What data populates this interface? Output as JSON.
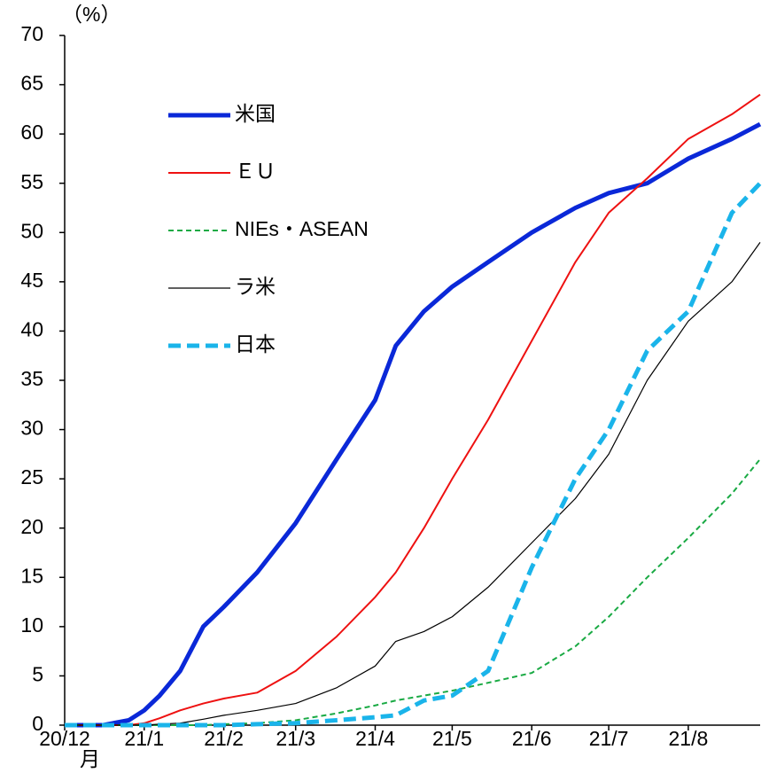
{
  "chart_data": {
    "type": "line",
    "ylabel": "（%）",
    "x_unit": "月",
    "x": [
      0,
      15,
      25,
      31,
      37,
      45,
      54,
      62,
      75,
      90,
      106,
      121,
      129,
      140,
      151,
      165,
      182,
      199,
      212,
      227,
      243,
      260,
      271
    ],
    "xlim": [
      0,
      271
    ],
    "xticks": [
      {
        "value": 0,
        "label": "20/12"
      },
      {
        "value": 31,
        "label": "21/1"
      },
      {
        "value": 62,
        "label": "21/2"
      },
      {
        "value": 90,
        "label": "21/3"
      },
      {
        "value": 121,
        "label": "21/4"
      },
      {
        "value": 151,
        "label": "21/5"
      },
      {
        "value": 182,
        "label": "21/6"
      },
      {
        "value": 212,
        "label": "21/7"
      },
      {
        "value": 243,
        "label": "21/8"
      }
    ],
    "ylim": [
      0,
      70
    ],
    "yticks": [
      0,
      5,
      10,
      15,
      20,
      25,
      30,
      35,
      40,
      45,
      50,
      55,
      60,
      65,
      70
    ],
    "legend": "upper left",
    "series": [
      {
        "name": "米国",
        "color": "#0a28d8",
        "width": 5,
        "dash": "none",
        "values": [
          0,
          0,
          0.5,
          1.5,
          3,
          5.5,
          10,
          12,
          15.5,
          20.5,
          27,
          33,
          38.5,
          42,
          44.5,
          47,
          50,
          52.5,
          54,
          55,
          57.5,
          59.5,
          61
        ]
      },
      {
        "name": "ＥＵ",
        "color": "#ee1111",
        "width": 2,
        "dash": "none",
        "values": [
          0,
          0,
          0,
          0.2,
          0.7,
          1.5,
          2.2,
          2.7,
          3.3,
          5.5,
          9,
          13,
          15.5,
          20,
          25,
          31,
          39,
          47,
          52,
          55.5,
          59.5,
          62,
          64
        ]
      },
      {
        "name": "NIEs・ASEAN",
        "color": "#1aaa44",
        "width": 2,
        "dash": "6 4",
        "values": [
          0,
          0,
          0,
          0,
          0,
          0,
          0,
          0.1,
          0.2,
          0.5,
          1.2,
          2,
          2.5,
          3,
          3.5,
          4.3,
          5.3,
          8,
          11,
          15,
          19,
          23.5,
          27
        ]
      },
      {
        "name": "ラ米",
        "color": "#000000",
        "width": 1.2,
        "dash": "none",
        "values": [
          0,
          0,
          0,
          0,
          0.1,
          0.2,
          0.6,
          1,
          1.5,
          2.2,
          3.8,
          6,
          8.5,
          9.5,
          11,
          14,
          18.5,
          23,
          27.5,
          35,
          41,
          45,
          49
        ]
      },
      {
        "name": "日本",
        "color": "#1ab4ea",
        "width": 5,
        "dash": "14 7",
        "values": [
          0,
          0,
          0,
          0,
          0,
          0,
          0,
          0,
          0.1,
          0.2,
          0.5,
          0.8,
          1,
          2.5,
          3,
          5.5,
          16,
          25,
          30,
          38,
          42,
          52,
          55
        ]
      }
    ]
  }
}
